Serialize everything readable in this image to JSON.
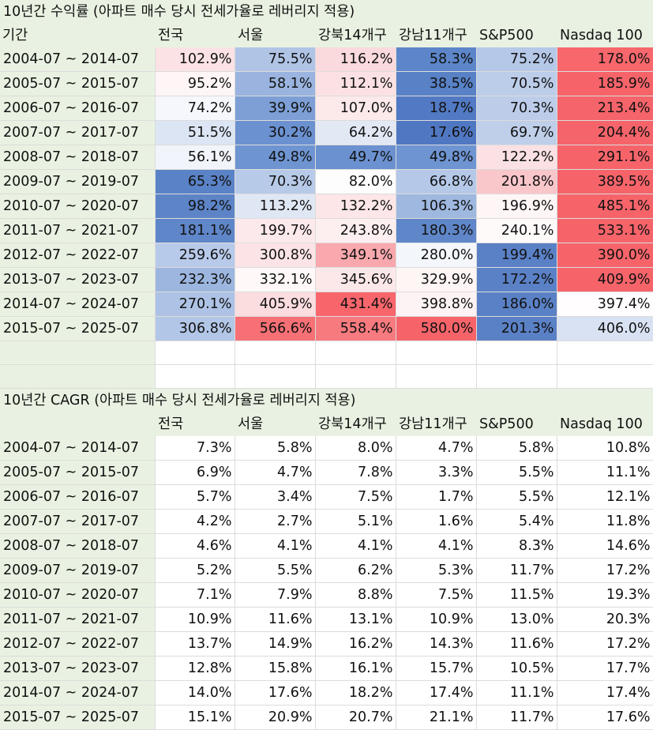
{
  "sheet1": {
    "title": "10년간 수익률 (아파트 매수 당시 전세가율로 레버리지 적용)",
    "headers": [
      "기간",
      "전국",
      "서울",
      "강북14개구",
      "강남11개구",
      "S&P500",
      "Nasdaq 100"
    ],
    "rows": [
      [
        "2004-07 ~ 2014-07",
        "102.9%",
        "75.5%",
        "116.2%",
        "58.3%",
        "75.2%",
        "178.0%"
      ],
      [
        "2005-07 ~ 2015-07",
        "95.2%",
        "58.1%",
        "112.1%",
        "38.5%",
        "70.5%",
        "185.9%"
      ],
      [
        "2006-07 ~ 2016-07",
        "74.2%",
        "39.9%",
        "107.0%",
        "18.7%",
        "70.3%",
        "213.4%"
      ],
      [
        "2007-07 ~ 2017-07",
        "51.5%",
        "30.2%",
        "64.2%",
        "17.6%",
        "69.7%",
        "204.4%"
      ],
      [
        "2008-07 ~ 2018-07",
        "56.1%",
        "49.8%",
        "49.7%",
        "49.8%",
        "122.2%",
        "291.1%"
      ],
      [
        "2009-07 ~ 2019-07",
        "65.3%",
        "70.3%",
        "82.0%",
        "66.8%",
        "201.8%",
        "389.5%"
      ],
      [
        "2010-07 ~ 2020-07",
        "98.2%",
        "113.2%",
        "132.2%",
        "106.3%",
        "196.9%",
        "485.1%"
      ],
      [
        "2011-07 ~ 2021-07",
        "181.1%",
        "199.7%",
        "243.8%",
        "180.3%",
        "240.1%",
        "533.1%"
      ],
      [
        "2012-07 ~ 2022-07",
        "259.6%",
        "300.8%",
        "349.1%",
        "280.0%",
        "199.4%",
        "390.0%"
      ],
      [
        "2013-07 ~ 2023-07",
        "232.3%",
        "332.1%",
        "345.6%",
        "329.9%",
        "172.2%",
        "409.9%"
      ],
      [
        "2014-07 ~ 2024-07",
        "270.1%",
        "405.9%",
        "431.4%",
        "398.8%",
        "186.0%",
        "397.4%"
      ],
      [
        "2015-07 ~ 2025-07",
        "306.8%",
        "566.6%",
        "558.4%",
        "580.0%",
        "201.3%",
        "406.0%"
      ]
    ],
    "colors": [
      [
        "#fbe2e4",
        "#b0c4e6",
        "#fadadd",
        "#5c86c9",
        "#b5c8e8",
        "#f7676c"
      ],
      [
        "#fef5f6",
        "#9ab4df",
        "#fbe1e3",
        "#5881c6",
        "#bccde9",
        "#f6646a"
      ],
      [
        "#f5f7fc",
        "#7d9fd6",
        "#fce9ea",
        "#5279c3",
        "#bdcde9",
        "#f5646a"
      ],
      [
        "#dce5f3",
        "#6b91d0",
        "#e2e9f5",
        "#5077c2",
        "#bfcfea",
        "#f5646a"
      ],
      [
        "#f1f4fa",
        "#6e94d1",
        "#6b91d0",
        "#6e94d1",
        "#fbe1e3",
        "#f6646a"
      ],
      [
        "#5a82c6",
        "#b7cae8",
        "#fdfdfe",
        "#b5c8e8",
        "#f9c6ca",
        "#f6646a"
      ],
      [
        "#5c84c7",
        "#e0e7f4",
        "#fce6e8",
        "#9fb8e0",
        "#fef5f6",
        "#f6646a"
      ],
      [
        "#5f86c8",
        "#fce9eb",
        "#fdeef0",
        "#5f86c8",
        "#fefafa",
        "#f6646a"
      ],
      [
        "#b8cae9",
        "#fce4e6",
        "#f9a8ad",
        "#f3f6fb",
        "#5a81c6",
        "#f6646a"
      ],
      [
        "#9cb6df",
        "#fef8f8",
        "#fce7e9",
        "#fef5f5",
        "#5a81c6",
        "#f6646a"
      ],
      [
        "#adc2e5",
        "#fbdcdf",
        "#f8666c",
        "#fdf3f4",
        "#5a81c6",
        "#fffdfd"
      ],
      [
        "#b2c6e7",
        "#f67075",
        "#f77a7f",
        "#f6646a",
        "#5a81c6",
        "#d8e2f2"
      ]
    ],
    "blank_rows": 2
  },
  "sheet2": {
    "title": "10년간 CAGR (아파트 매수 당시 전세가율로 레버리지 적용)",
    "headers": [
      "",
      "전국",
      "서울",
      "강북14개구",
      "강남11개구",
      "S&P500",
      "Nasdaq 100"
    ],
    "rows": [
      [
        "2004-07 ~ 2014-07",
        "7.3%",
        "5.8%",
        "8.0%",
        "4.7%",
        "5.8%",
        "10.8%"
      ],
      [
        "2005-07 ~ 2015-07",
        "6.9%",
        "4.7%",
        "7.8%",
        "3.3%",
        "5.5%",
        "11.1%"
      ],
      [
        "2006-07 ~ 2016-07",
        "5.7%",
        "3.4%",
        "7.5%",
        "1.7%",
        "5.5%",
        "12.1%"
      ],
      [
        "2007-07 ~ 2017-07",
        "4.2%",
        "2.7%",
        "5.1%",
        "1.6%",
        "5.4%",
        "11.8%"
      ],
      [
        "2008-07 ~ 2018-07",
        "4.6%",
        "4.1%",
        "4.1%",
        "4.1%",
        "8.3%",
        "14.6%"
      ],
      [
        "2009-07 ~ 2019-07",
        "5.2%",
        "5.5%",
        "6.2%",
        "5.3%",
        "11.7%",
        "17.2%"
      ],
      [
        "2010-07 ~ 2020-07",
        "7.1%",
        "7.9%",
        "8.8%",
        "7.5%",
        "11.5%",
        "19.3%"
      ],
      [
        "2011-07 ~ 2021-07",
        "10.9%",
        "11.6%",
        "13.1%",
        "10.9%",
        "13.0%",
        "20.3%"
      ],
      [
        "2012-07 ~ 2022-07",
        "13.7%",
        "14.9%",
        "16.2%",
        "14.3%",
        "11.6%",
        "17.2%"
      ],
      [
        "2013-07 ~ 2023-07",
        "12.8%",
        "15.8%",
        "16.1%",
        "15.7%",
        "10.5%",
        "17.7%"
      ],
      [
        "2014-07 ~ 2024-07",
        "14.0%",
        "17.6%",
        "18.2%",
        "17.4%",
        "11.1%",
        "17.4%"
      ],
      [
        "2015-07 ~ 2025-07",
        "15.1%",
        "20.9%",
        "20.7%",
        "21.1%",
        "11.7%",
        "17.6%"
      ]
    ]
  },
  "theme": {
    "header_bg": "#e9f2e2",
    "grid": "#dcdcdc"
  }
}
